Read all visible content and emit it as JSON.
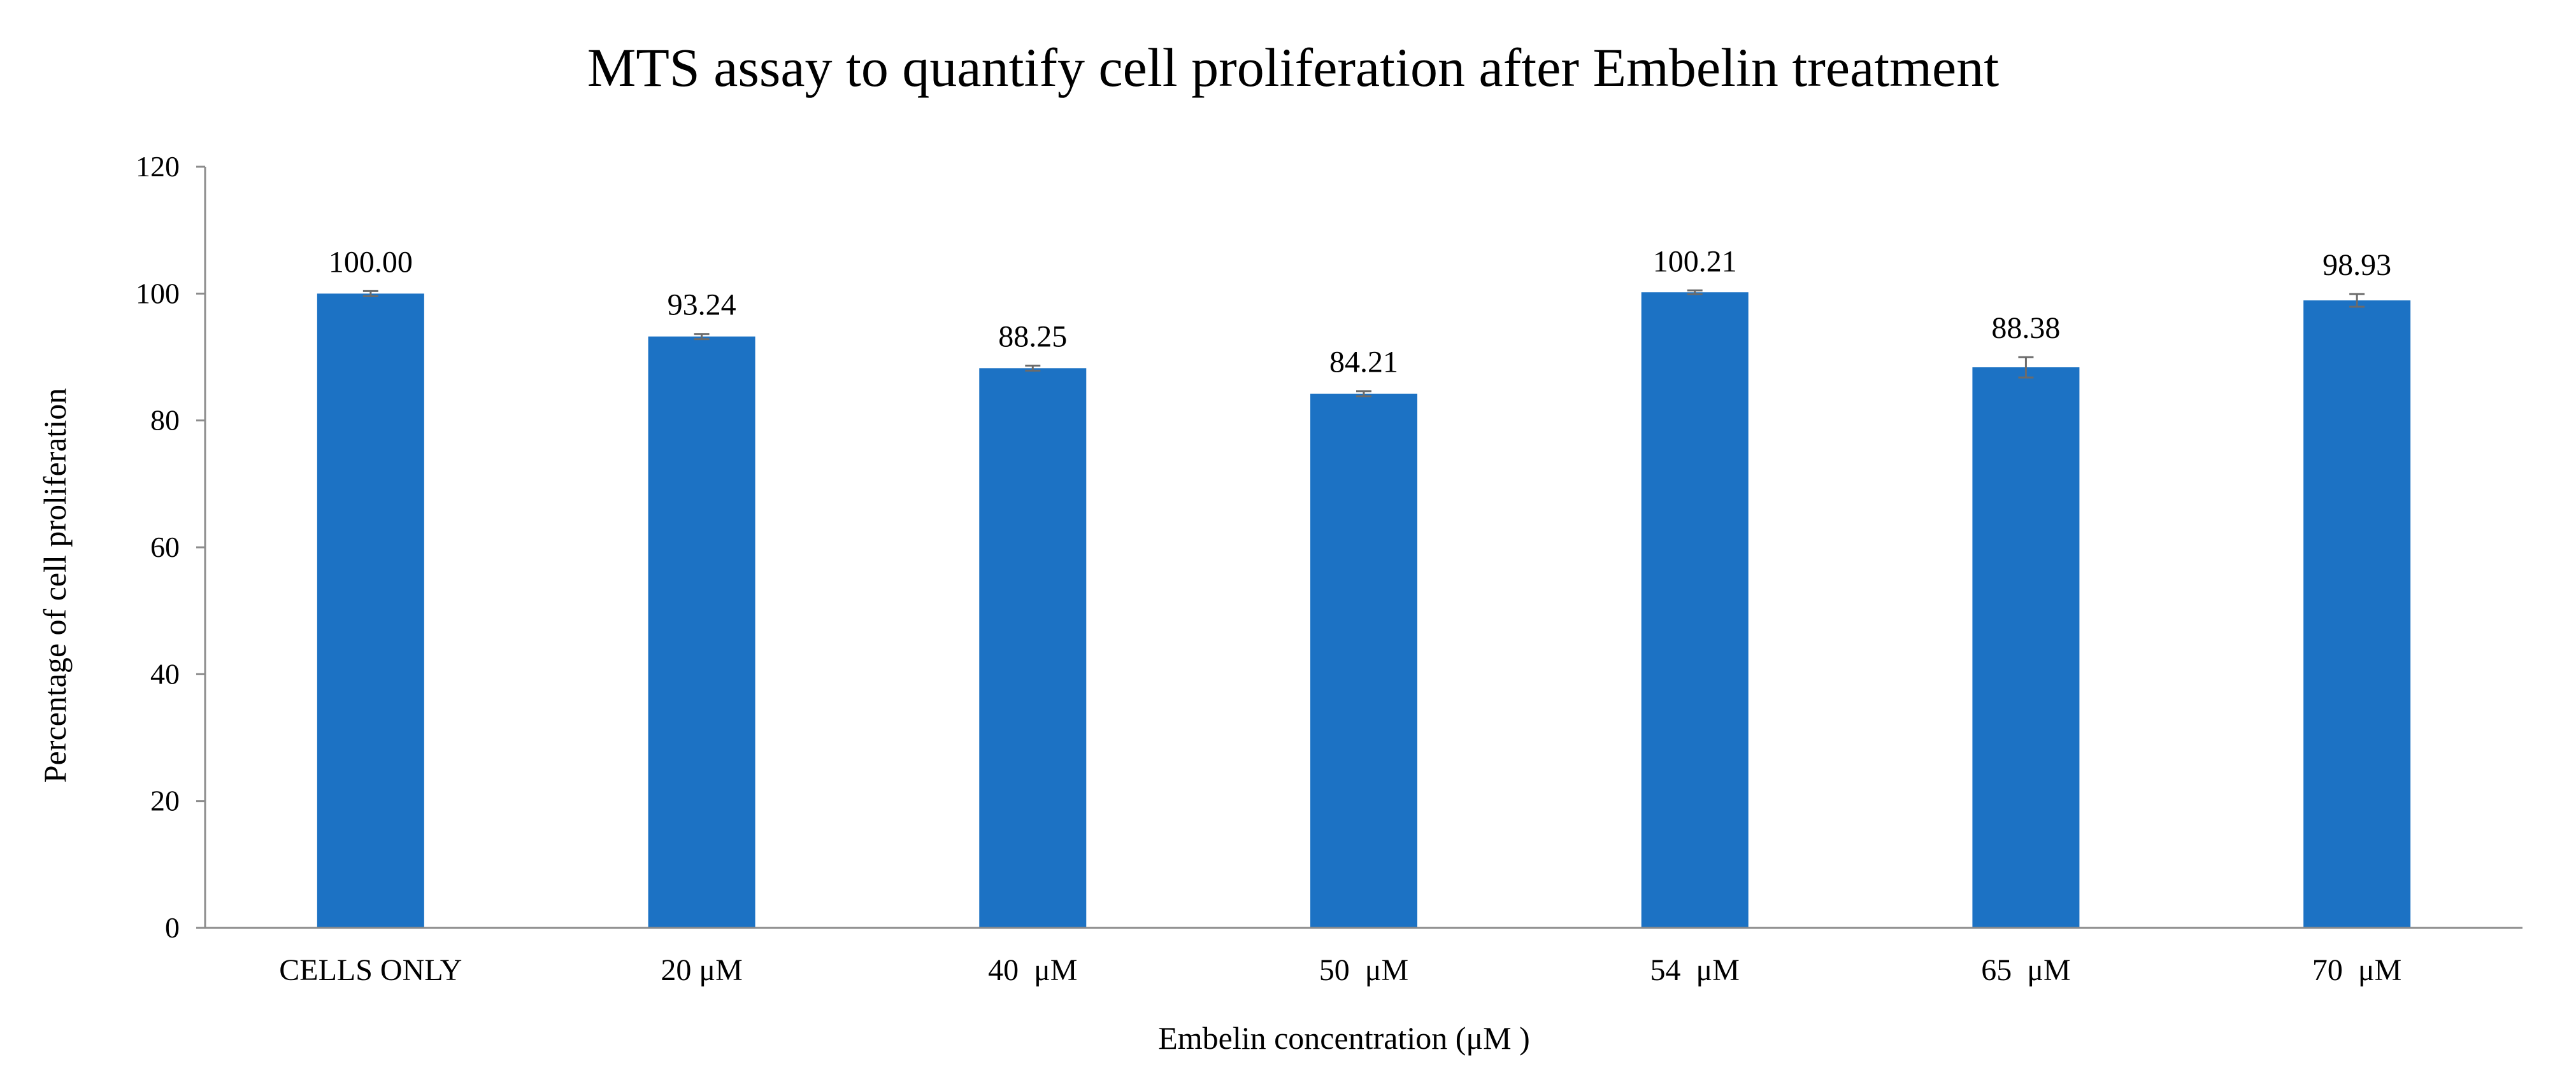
{
  "chart_data": {
    "type": "bar",
    "title": "MTS assay to quantify cell proliferation after Embelin treatment",
    "xlabel": "Embelin concentration (μM )",
    "ylabel": "Percentage of cell proliferation",
    "ylim": [
      0,
      120
    ],
    "yticks": [
      0,
      20,
      40,
      60,
      80,
      100,
      120
    ],
    "categories": [
      "CELLS ONLY",
      "20 μM",
      "40  μM",
      "50  μM",
      "54  μM",
      "65  μM",
      "70  μM"
    ],
    "values": [
      100.0,
      93.24,
      88.25,
      84.21,
      100.21,
      88.38,
      98.93
    ],
    "value_labels": [
      "100.00",
      "93.24",
      "88.25",
      "84.21",
      "100.21",
      "88.38",
      "98.93"
    ],
    "errors": [
      0.4,
      0.4,
      0.4,
      0.4,
      0.3,
      1.6,
      1.0
    ],
    "bar_color": "#1c72c4",
    "grid": false,
    "legend": "none"
  }
}
